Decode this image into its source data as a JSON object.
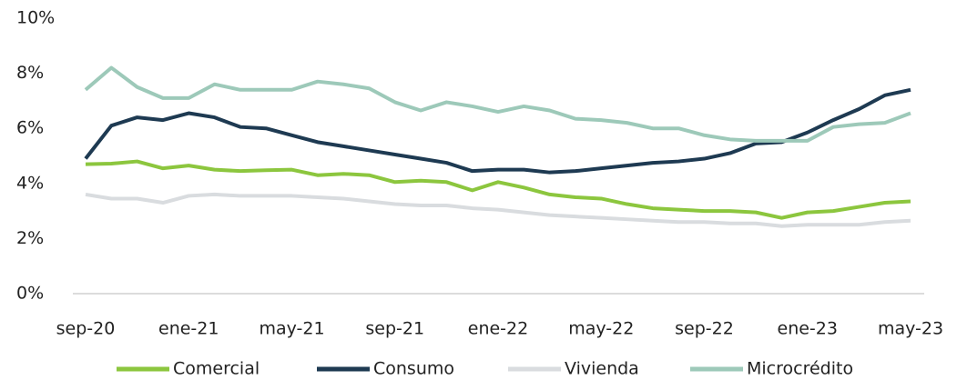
{
  "chart_data": {
    "type": "line",
    "categories": [
      "sep-20",
      null,
      null,
      null,
      "ene-21",
      null,
      null,
      null,
      "may-21",
      null,
      null,
      null,
      "sep-21",
      null,
      null,
      null,
      "ene-22",
      null,
      null,
      null,
      "may-22",
      null,
      null,
      null,
      "sep-22",
      null,
      null,
      null,
      "ene-23",
      null,
      null,
      null,
      "may-23"
    ],
    "series": [
      {
        "name": "Comercial",
        "color": "#8cc63e",
        "values": [
          4.7,
          4.72,
          4.8,
          4.55,
          4.65,
          4.5,
          4.45,
          4.48,
          4.5,
          4.3,
          4.35,
          4.3,
          4.05,
          4.1,
          4.05,
          3.75,
          4.05,
          3.85,
          3.6,
          3.5,
          3.45,
          3.25,
          3.1,
          3.05,
          3.0,
          3.0,
          2.95,
          2.75,
          2.95,
          3.0,
          3.15,
          3.3,
          3.35
        ]
      },
      {
        "name": "Consumo",
        "color": "#1e3a52",
        "values": [
          4.9,
          6.1,
          6.4,
          6.3,
          6.55,
          6.4,
          6.05,
          6.0,
          5.75,
          5.5,
          5.35,
          5.2,
          5.05,
          4.9,
          4.75,
          4.45,
          4.5,
          4.5,
          4.4,
          4.45,
          4.55,
          4.65,
          4.75,
          4.8,
          4.9,
          5.1,
          5.45,
          5.5,
          5.85,
          6.3,
          6.7,
          7.2,
          7.4
        ]
      },
      {
        "name": "Vivienda",
        "color": "#d9dcdf",
        "values": [
          3.6,
          3.45,
          3.45,
          3.3,
          3.55,
          3.6,
          3.55,
          3.55,
          3.55,
          3.5,
          3.45,
          3.35,
          3.25,
          3.2,
          3.2,
          3.1,
          3.05,
          2.95,
          2.85,
          2.8,
          2.75,
          2.7,
          2.65,
          2.6,
          2.6,
          2.55,
          2.55,
          2.45,
          2.5,
          2.5,
          2.5,
          2.6,
          2.65
        ]
      },
      {
        "name": "Microcrédito",
        "color": "#9dc9b9",
        "values": [
          7.4,
          8.2,
          7.5,
          7.1,
          7.1,
          7.6,
          7.4,
          7.4,
          7.4,
          7.7,
          7.6,
          7.45,
          6.95,
          6.65,
          6.95,
          6.8,
          6.6,
          6.8,
          6.65,
          6.35,
          6.3,
          6.2,
          6.0,
          6.0,
          5.75,
          5.6,
          5.55,
          5.55,
          5.55,
          6.05,
          6.15,
          6.2,
          6.55
        ]
      }
    ],
    "ylim": [
      0,
      10
    ],
    "yticks": [
      {
        "value": 0,
        "label": "0%"
      },
      {
        "value": 2,
        "label": "2%"
      },
      {
        "value": 4,
        "label": "4%"
      },
      {
        "value": 6,
        "label": "6%"
      },
      {
        "value": 8,
        "label": "8%"
      },
      {
        "value": 10,
        "label": "10%"
      }
    ],
    "grid": false,
    "legend": "bottom"
  }
}
